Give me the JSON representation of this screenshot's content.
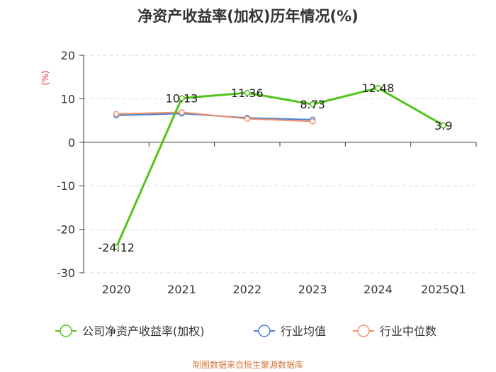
{
  "chart_data": {
    "type": "line",
    "title": "净资产收益率(加权)历年情况(%)",
    "ylabel": "(%)",
    "xlabel": "",
    "categories": [
      "2020",
      "2021",
      "2022",
      "2023",
      "2024",
      "2025Q1"
    ],
    "ylim": [
      -30,
      20
    ],
    "yticks": [
      20,
      10,
      0,
      -10,
      -20,
      -30
    ],
    "grid": "horizontal dashed",
    "legend_position": "bottom",
    "series": [
      {
        "name": "公司净资产收益率(加权)",
        "color": "#52c41a",
        "values": [
          -24.12,
          10.13,
          11.36,
          8.73,
          12.48,
          3.9
        ],
        "labels": [
          "-24.12",
          "10.13",
          "11.36",
          "8.73",
          "12.48",
          "3.9"
        ]
      },
      {
        "name": "行业均值",
        "color": "#4a7fd4",
        "values": [
          6.2,
          6.6,
          5.6,
          5.2,
          null,
          null
        ]
      },
      {
        "name": "行业中位数",
        "color": "#f0906a",
        "values": [
          6.5,
          6.9,
          5.4,
          4.8,
          null,
          null
        ]
      }
    ]
  },
  "source": "制图数据来自恒生聚源数据库"
}
